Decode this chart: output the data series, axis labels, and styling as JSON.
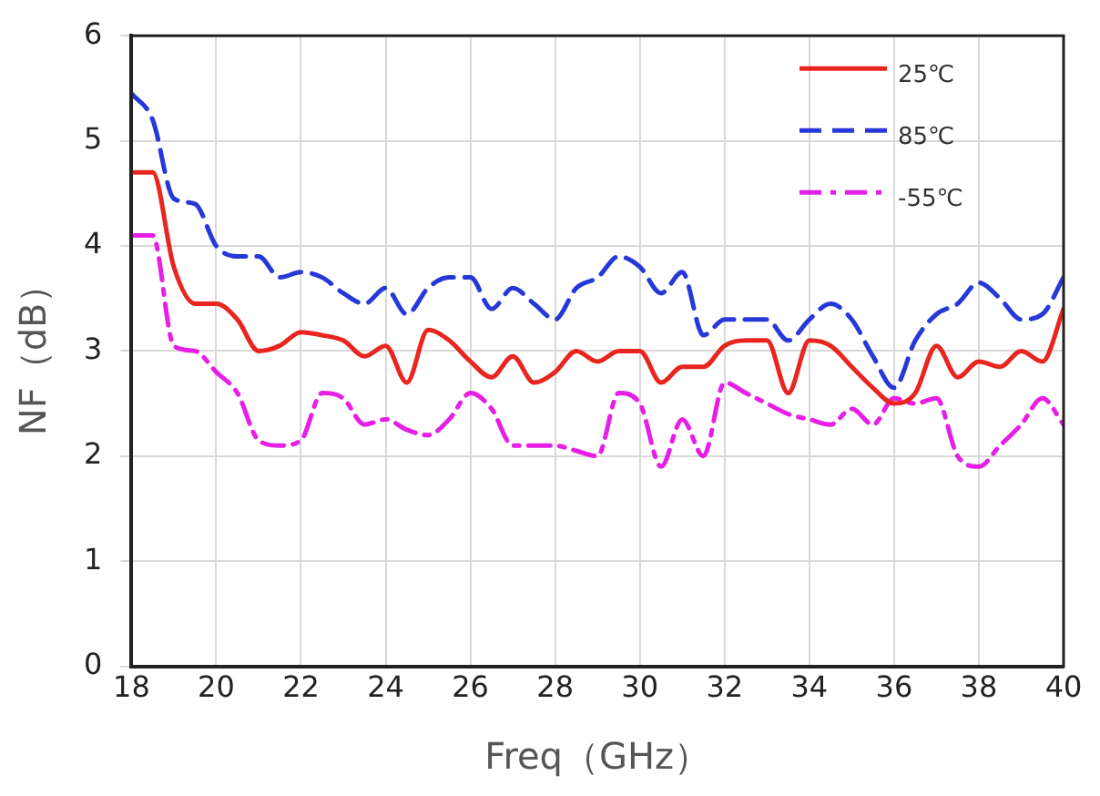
{
  "chart_data": {
    "type": "line",
    "xlabel": "Freq（GHz）",
    "ylabel": "NF（dB）",
    "x": [
      18,
      18.5,
      19,
      19.5,
      20,
      20.5,
      21,
      21.5,
      22,
      22.5,
      23,
      23.5,
      24,
      24.5,
      25,
      25.5,
      26,
      26.5,
      27,
      27.5,
      28,
      28.5,
      29,
      29.5,
      30,
      30.5,
      31,
      31.5,
      32,
      32.5,
      33,
      33.5,
      34,
      34.5,
      35,
      35.5,
      36,
      36.5,
      37,
      37.5,
      38,
      38.5,
      39,
      39.5,
      40
    ],
    "series": [
      {
        "name": "25℃",
        "color": "#e8251f",
        "line_style": "solid",
        "values": [
          4.7,
          4.7,
          3.8,
          3.45,
          3.45,
          3.3,
          3.0,
          3.05,
          3.18,
          3.15,
          3.1,
          2.95,
          3.05,
          2.7,
          3.2,
          3.1,
          2.9,
          2.75,
          2.95,
          2.7,
          2.8,
          3.0,
          2.9,
          3.0,
          3.0,
          2.7,
          2.85,
          2.85,
          3.05,
          3.1,
          3.1,
          2.6,
          3.1,
          3.05,
          2.85,
          2.65,
          2.5,
          2.6,
          3.05,
          2.75,
          2.9,
          2.85,
          3.0,
          2.9,
          3.4
        ]
      },
      {
        "name": "85℃",
        "color": "#2638d8",
        "line_style": "dashed",
        "values": [
          5.45,
          5.2,
          4.45,
          4.4,
          4.0,
          3.9,
          3.9,
          3.7,
          3.75,
          3.7,
          3.55,
          3.45,
          3.6,
          3.35,
          3.6,
          3.7,
          3.7,
          3.4,
          3.6,
          3.45,
          3.3,
          3.6,
          3.7,
          3.9,
          3.8,
          3.55,
          3.75,
          3.15,
          3.3,
          3.3,
          3.3,
          3.1,
          3.3,
          3.45,
          3.3,
          2.95,
          2.65,
          3.1,
          3.35,
          3.45,
          3.65,
          3.5,
          3.3,
          3.35,
          3.7
        ]
      },
      {
        "name": "-55℃",
        "color": "#e61ee6",
        "line_style": "dashdot",
        "values": [
          4.1,
          4.1,
          3.05,
          3.0,
          2.8,
          2.6,
          2.15,
          2.1,
          2.15,
          2.6,
          2.55,
          2.3,
          2.35,
          2.25,
          2.2,
          2.35,
          2.6,
          2.45,
          2.1,
          2.1,
          2.1,
          2.05,
          2.0,
          2.6,
          2.5,
          1.9,
          2.35,
          2.0,
          2.7,
          2.6,
          2.5,
          2.4,
          2.35,
          2.3,
          2.45,
          2.3,
          2.55,
          2.5,
          2.55,
          2.0,
          1.9,
          2.1,
          2.3,
          2.55,
          2.3
        ]
      }
    ],
    "xlim": [
      18,
      40
    ],
    "xticks": [
      18,
      20,
      22,
      24,
      26,
      28,
      30,
      32,
      34,
      36,
      38,
      40
    ],
    "ylim": [
      0,
      6
    ],
    "yticks": [
      0,
      1,
      2,
      3,
      4,
      5,
      6
    ],
    "grid": true,
    "legend": "top right",
    "marker": "none"
  }
}
